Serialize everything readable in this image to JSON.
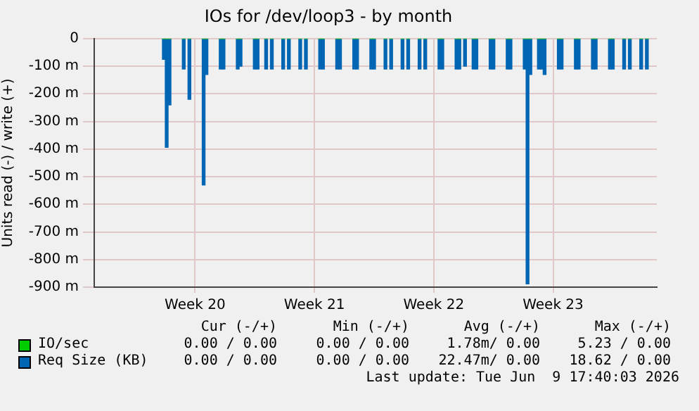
{
  "chart_data": {
    "type": "bar",
    "title": "IOs for /dev/loop3 - by month",
    "ylabel": "Units read (-) / write (+)",
    "categories": [
      null,
      null,
      null,
      null,
      null,
      null,
      null,
      null,
      null,
      null,
      null,
      null,
      null,
      null,
      null,
      null,
      null,
      null,
      null,
      null,
      null,
      null,
      null,
      null,
      null,
      null,
      null,
      null,
      null,
      null,
      null,
      null,
      null,
      null,
      null,
      "Week 20",
      null,
      null,
      null,
      null,
      null,
      null,
      null,
      null,
      null,
      null,
      null,
      null,
      null,
      null,
      null,
      null,
      null,
      null,
      null,
      null,
      null,
      null,
      null,
      null,
      null,
      null,
      null,
      null,
      null,
      null,
      null,
      null,
      null,
      null,
      null,
      null,
      null,
      null,
      null,
      null,
      null,
      "Week 21",
      null,
      null,
      null,
      null,
      null,
      null,
      null,
      null,
      null,
      null,
      null,
      null,
      null,
      null,
      null,
      null,
      null,
      null,
      null,
      null,
      null,
      null,
      null,
      null,
      null,
      null,
      null,
      null,
      null,
      null,
      null,
      null,
      null,
      null,
      null,
      null,
      null,
      null,
      null,
      null,
      null,
      "Week 22",
      null,
      null,
      null,
      null,
      null,
      null,
      null,
      null,
      null,
      null,
      null,
      null,
      null,
      null,
      null,
      null,
      null,
      null,
      null,
      null,
      null,
      null,
      null,
      null,
      null,
      null,
      null,
      null,
      null,
      null,
      null,
      null,
      null,
      null,
      null,
      null,
      null,
      null,
      null,
      null,
      null,
      "Week 23",
      null,
      null,
      null,
      null,
      null,
      null,
      null,
      null,
      null,
      null,
      null,
      null,
      null,
      null,
      null,
      null,
      null,
      null,
      null,
      null,
      null,
      null,
      null,
      null,
      null,
      null,
      null,
      null,
      null,
      null,
      null,
      null,
      null,
      null,
      null,
      null
    ],
    "series": [
      {
        "name": "IO/sec",
        "color": "#00cc00",
        "values": [
          null,
          null,
          null,
          null,
          null,
          null,
          null,
          null,
          null,
          null,
          null,
          null,
          null,
          null,
          null,
          null,
          null,
          null,
          null,
          null,
          null,
          null,
          null,
          null,
          0,
          0,
          0,
          null,
          null,
          null,
          null,
          0,
          null,
          0,
          null,
          null,
          null,
          null,
          0,
          0,
          null,
          null,
          null,
          null,
          0,
          0,
          null,
          null,
          null,
          null,
          0,
          0,
          null,
          null,
          null,
          null,
          0,
          0,
          null,
          null,
          0,
          null,
          0,
          null,
          null,
          null,
          0,
          null,
          0,
          null,
          null,
          null,
          0,
          null,
          0,
          null,
          null,
          null,
          null,
          0,
          0,
          null,
          null,
          null,
          null,
          0,
          0,
          null,
          null,
          null,
          null,
          0,
          0,
          null,
          null,
          null,
          null,
          0,
          0,
          null,
          null,
          null,
          0,
          null,
          0,
          null,
          null,
          null,
          0,
          null,
          0,
          null,
          null,
          null,
          0,
          null,
          0,
          null,
          null,
          null,
          null,
          0,
          0,
          null,
          null,
          null,
          null,
          0,
          0,
          null,
          0,
          null,
          null,
          0,
          0,
          null,
          null,
          null,
          null,
          0,
          0,
          null,
          null,
          null,
          null,
          0,
          0,
          null,
          null,
          null,
          null,
          0,
          0,
          0,
          null,
          null,
          0,
          0,
          0,
          null,
          null,
          null,
          null,
          0,
          0,
          null,
          null,
          null,
          null,
          0,
          0,
          null,
          null,
          null,
          null,
          0,
          0,
          null,
          null,
          null,
          null,
          0,
          0,
          null,
          null,
          null,
          0,
          null,
          0,
          null,
          null,
          null,
          0,
          null,
          0,
          null,
          null,
          null
        ]
      },
      {
        "name": "Req Size (KB)",
        "color": "#0066b3",
        "values": [
          null,
          null,
          null,
          null,
          null,
          null,
          null,
          null,
          null,
          null,
          null,
          null,
          null,
          null,
          null,
          null,
          null,
          null,
          null,
          null,
          null,
          null,
          null,
          null,
          -75,
          -394,
          -240,
          null,
          null,
          null,
          null,
          -110,
          null,
          -220,
          null,
          null,
          null,
          null,
          -530,
          -130,
          null,
          null,
          null,
          null,
          -110,
          -110,
          null,
          null,
          null,
          null,
          -110,
          -100,
          null,
          null,
          null,
          null,
          -110,
          -110,
          null,
          null,
          -110,
          null,
          -110,
          null,
          null,
          null,
          -110,
          null,
          -110,
          null,
          null,
          null,
          -110,
          null,
          -110,
          null,
          null,
          null,
          null,
          -110,
          -110,
          null,
          null,
          null,
          null,
          -110,
          -110,
          null,
          null,
          null,
          null,
          -110,
          -110,
          null,
          null,
          null,
          null,
          -110,
          -110,
          null,
          null,
          null,
          -110,
          null,
          -110,
          null,
          null,
          null,
          -110,
          null,
          -110,
          null,
          null,
          null,
          -110,
          null,
          -110,
          null,
          null,
          null,
          null,
          -110,
          -110,
          null,
          null,
          null,
          null,
          -110,
          -110,
          null,
          -100,
          null,
          null,
          -110,
          -110,
          null,
          null,
          null,
          null,
          -110,
          -110,
          null,
          null,
          null,
          null,
          -110,
          -110,
          null,
          null,
          null,
          null,
          -110,
          -888,
          -130,
          null,
          null,
          -110,
          -110,
          -130,
          null,
          null,
          null,
          null,
          -110,
          -110,
          null,
          null,
          null,
          null,
          -110,
          -110,
          null,
          null,
          null,
          null,
          -110,
          -110,
          null,
          null,
          null,
          null,
          -110,
          -110,
          null,
          null,
          null,
          -110,
          null,
          -110,
          null,
          null,
          null,
          -110,
          null,
          -110,
          null,
          null,
          null
        ]
      }
    ],
    "ylim": [
      -900,
      0
    ],
    "yticks": [
      {
        "value": -900,
        "label": "-900 m"
      },
      {
        "value": -800,
        "label": "-800 m"
      },
      {
        "value": -700,
        "label": "-700 m"
      },
      {
        "value": -600,
        "label": "-600 m"
      },
      {
        "value": -500,
        "label": "-500 m"
      },
      {
        "value": -400,
        "label": "-400 m"
      },
      {
        "value": -300,
        "label": "-300 m"
      },
      {
        "value": -200,
        "label": "-200 m"
      },
      {
        "value": -100,
        "label": "-100 m"
      },
      0
    ],
    "grid": true,
    "legend": "bottom",
    "annotations": [
      "Cur (-/+)",
      "Min (-/+)",
      "Avg (-/+)",
      "Max (-/+)",
      "0.00 / 0.00",
      "0.00 / 0.00",
      "1.78m/ 0.00",
      "5.23 / 0.00",
      "0.00 / 0.00",
      "0.00 / 0.00",
      "22.47m/ 0.00",
      "18.62 / 0.00",
      "Last update: Tue Jun  9 17:40:03 2026"
    ]
  }
}
